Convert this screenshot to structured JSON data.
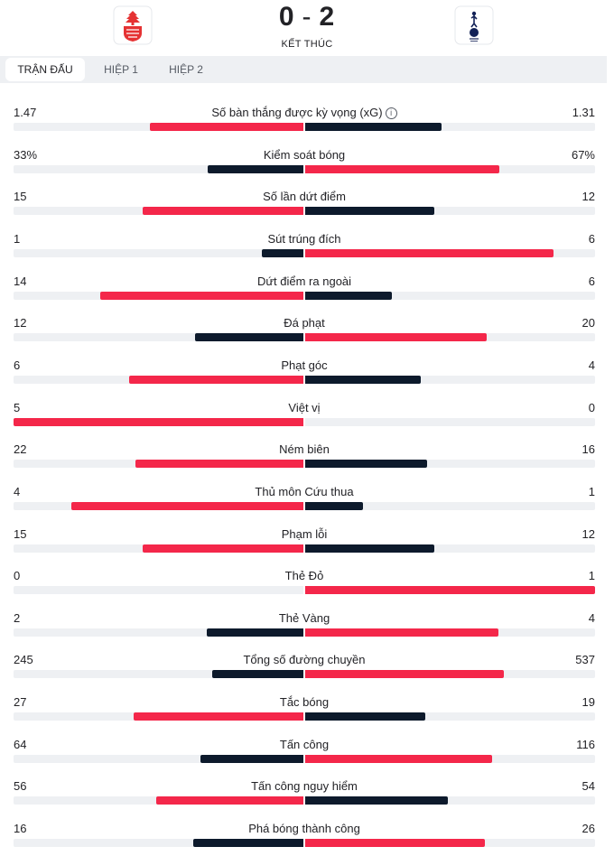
{
  "match": {
    "home_score": "0",
    "separator": "-",
    "away_score": "2",
    "status": "KẾT THÚC",
    "home_crest": "nottingham-forest-crest",
    "away_crest": "tottenham-hotspur-crest"
  },
  "tabs": [
    {
      "label": "TRẬN ĐẤU",
      "active": true
    },
    {
      "label": "HIỆP 1",
      "active": false
    },
    {
      "label": "HIỆP 2",
      "active": false
    }
  ],
  "colors": {
    "highlight": "#f4274a",
    "neutral": "#0d1a2c",
    "track": "#eef0f3"
  },
  "stats": [
    {
      "label": "Số bàn thắng được kỳ vọng (xG)",
      "home": "1.47",
      "away": "1.31",
      "home_num": 1.47,
      "away_num": 1.31,
      "info_icon": true
    },
    {
      "label": "Kiểm soát bóng",
      "home": "33%",
      "away": "67%",
      "home_num": 33,
      "away_num": 67
    },
    {
      "label": "Số lần dứt điểm",
      "home": "15",
      "away": "12",
      "home_num": 15,
      "away_num": 12
    },
    {
      "label": "Sút trúng đích",
      "home": "1",
      "away": "6",
      "home_num": 1,
      "away_num": 6
    },
    {
      "label": "Dứt điểm ra ngoài",
      "home": "14",
      "away": "6",
      "home_num": 14,
      "away_num": 6
    },
    {
      "label": "Đá phạt",
      "home": "12",
      "away": "20",
      "home_num": 12,
      "away_num": 20
    },
    {
      "label": "Phạt góc",
      "home": "6",
      "away": "4",
      "home_num": 6,
      "away_num": 4
    },
    {
      "label": "Việt vị",
      "home": "5",
      "away": "0",
      "home_num": 5,
      "away_num": 0
    },
    {
      "label": "Ném biên",
      "home": "22",
      "away": "16",
      "home_num": 22,
      "away_num": 16
    },
    {
      "label": "Thủ môn Cứu thua",
      "home": "4",
      "away": "1",
      "home_num": 4,
      "away_num": 1
    },
    {
      "label": "Phạm lỗi",
      "home": "15",
      "away": "12",
      "home_num": 15,
      "away_num": 12
    },
    {
      "label": "Thẻ Đỏ",
      "home": "0",
      "away": "1",
      "home_num": 0,
      "away_num": 1
    },
    {
      "label": "Thẻ Vàng",
      "home": "2",
      "away": "4",
      "home_num": 2,
      "away_num": 4
    },
    {
      "label": "Tổng số đường chuyền",
      "home": "245",
      "away": "537",
      "home_num": 245,
      "away_num": 537
    },
    {
      "label": "Tắc bóng",
      "home": "27",
      "away": "19",
      "home_num": 27,
      "away_num": 19
    },
    {
      "label": "Tấn công",
      "home": "64",
      "away": "116",
      "home_num": 64,
      "away_num": 116
    },
    {
      "label": "Tấn công nguy hiểm",
      "home": "56",
      "away": "54",
      "home_num": 56,
      "away_num": 54
    },
    {
      "label": "Phá bóng thành công",
      "home": "16",
      "away": "26",
      "home_num": 16,
      "away_num": 26
    }
  ]
}
